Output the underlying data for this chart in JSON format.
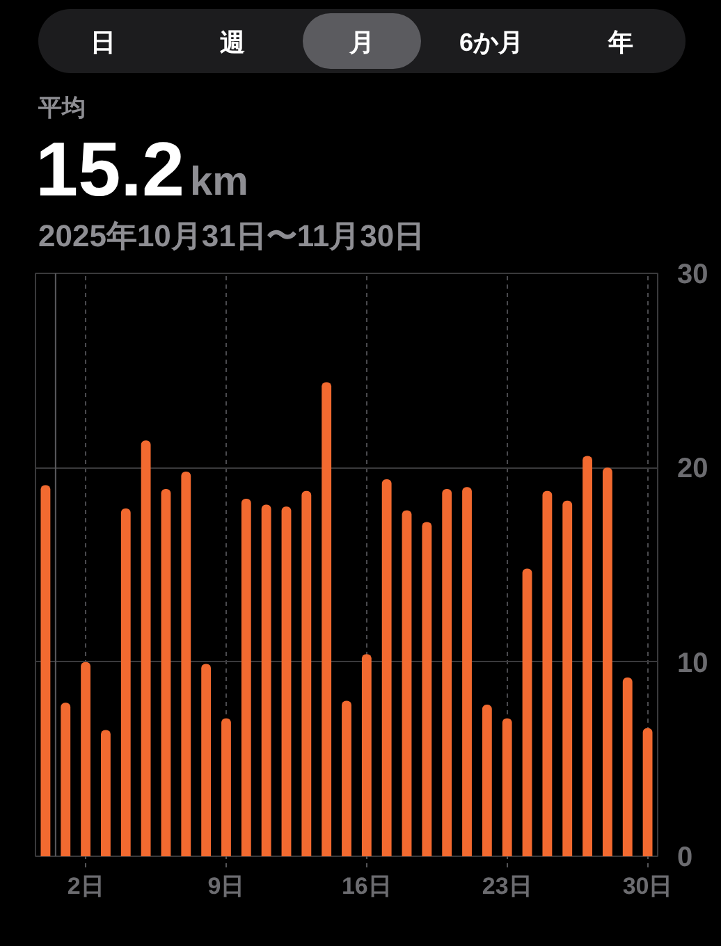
{
  "chart_data": {
    "type": "bar",
    "title": "平均",
    "subtitle": "2025年10月31日〜11月30日",
    "annotations": [
      "日",
      "週",
      "月",
      "6か月",
      "年",
      "15.2km"
    ],
    "x": [
      "2025-10-31",
      "2025-11-01",
      "2025-11-02",
      "2025-11-03",
      "2025-11-04",
      "2025-11-05",
      "2025-11-06",
      "2025-11-07",
      "2025-11-08",
      "2025-11-09",
      "2025-11-10",
      "2025-11-11",
      "2025-11-12",
      "2025-11-13",
      "2025-11-14",
      "2025-11-15",
      "2025-11-16",
      "2025-11-17",
      "2025-11-18",
      "2025-11-19",
      "2025-11-20",
      "2025-11-21",
      "2025-11-22",
      "2025-11-23",
      "2025-11-24",
      "2025-11-25",
      "2025-11-26",
      "2025-11-27",
      "2025-11-28",
      "2025-11-29",
      "2025-11-30"
    ],
    "values": [
      19.1,
      7.9,
      10.0,
      6.5,
      17.9,
      21.4,
      18.9,
      19.8,
      9.9,
      7.1,
      18.4,
      18.1,
      18.0,
      18.8,
      24.4,
      8.0,
      10.4,
      19.4,
      17.8,
      17.2,
      18.9,
      19.0,
      7.8,
      7.1,
      14.8,
      18.8,
      18.3,
      20.6,
      20.0,
      9.2,
      6.6
    ],
    "color": "#f26a30",
    "xlim": [
      "2025-10-30T12:00",
      "2025-11-30T12:00"
    ],
    "xticks": [
      {
        "value": "2025-11-02",
        "label": "2日"
      },
      {
        "value": "2025-11-09",
        "label": "9日"
      },
      {
        "value": "2025-11-16",
        "label": "16日"
      },
      {
        "value": "2025-11-23",
        "label": "23日"
      },
      {
        "value": "2025-11-30",
        "label": "30日"
      }
    ],
    "ylim": [
      0,
      30
    ],
    "yticks": [
      0,
      10,
      20,
      30
    ],
    "grid": true,
    "ref_lines": [
      {
        "axis": "x",
        "value": "2025-10-31T12:00"
      }
    ]
  }
}
